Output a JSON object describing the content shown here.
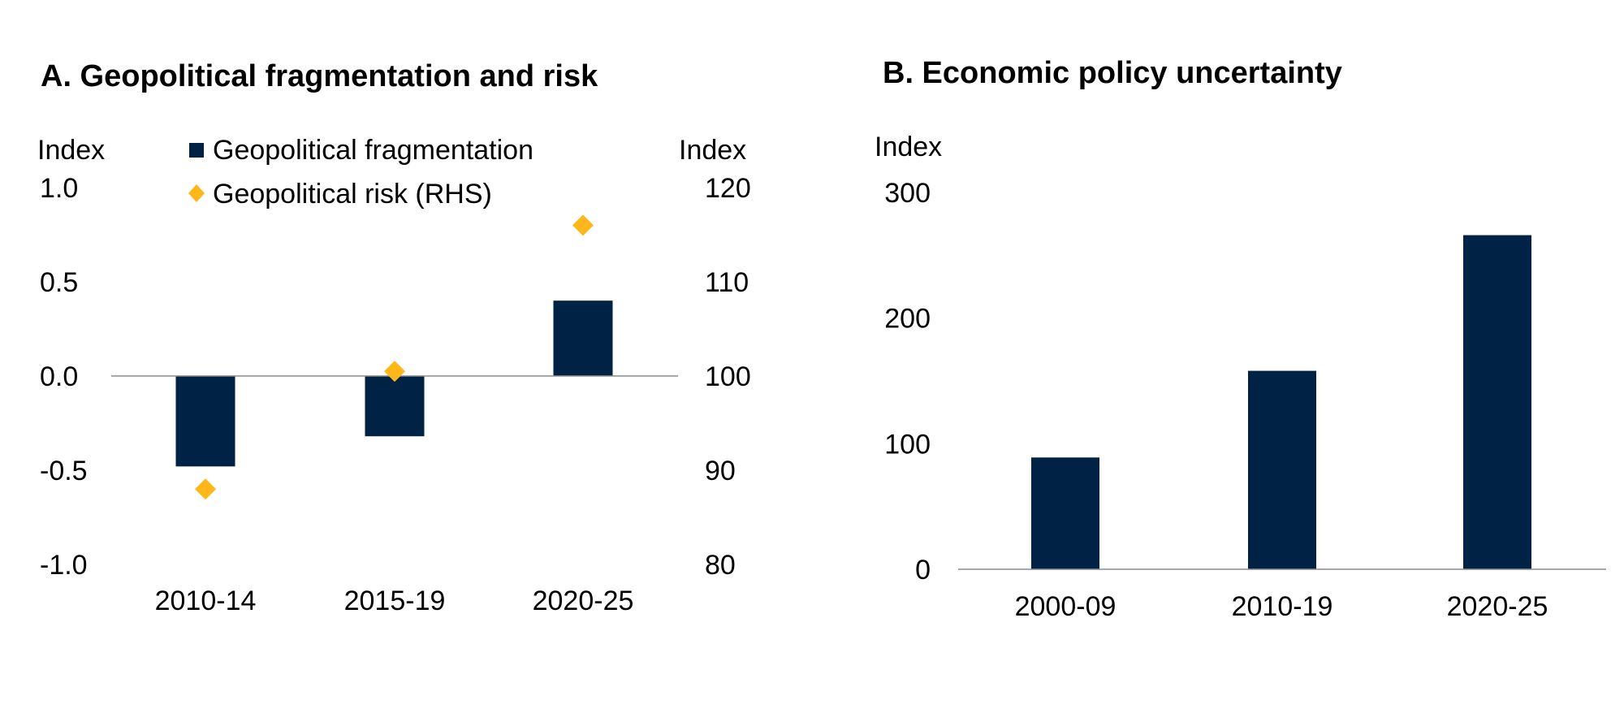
{
  "colors": {
    "bar": "#002244",
    "marker": "#FDB71A",
    "axis": "#8c8c8c"
  },
  "chart_data": [
    {
      "type": "bar",
      "title": "A. Geopolitical fragmentation and risk",
      "categories": [
        "2010-14",
        "2015-19",
        "2020-25"
      ],
      "ylabel": "Index",
      "ylabel_right": "Index",
      "ylim": [
        -1.0,
        1.0
      ],
      "ylim_right": [
        80,
        120
      ],
      "yticks": [
        1.0,
        0.5,
        0.0,
        -0.5,
        -1.0
      ],
      "ytick_labels": [
        "1.0",
        "0.5",
        "0.0",
        "-0.5",
        "-1.0"
      ],
      "yticks_right": [
        120,
        110,
        100,
        90,
        80
      ],
      "ytick_labels_right": [
        "120",
        "110",
        "100",
        "90",
        "80"
      ],
      "legend_position": "top-center",
      "series": [
        {
          "name": "Geopolitical fragmentation",
          "kind": "bar",
          "axis": "left",
          "values": [
            -0.48,
            -0.32,
            0.4
          ]
        },
        {
          "name": "Geopolitical risk (RHS)",
          "kind": "marker",
          "axis": "right",
          "values": [
            88,
            100.5,
            116
          ]
        }
      ]
    },
    {
      "type": "bar",
      "title": "B. Economic policy uncertainty",
      "categories": [
        "2000-09",
        "2010-19",
        "2020-25"
      ],
      "ylabel": "Index",
      "ylim": [
        0,
        300
      ],
      "yticks": [
        300,
        200,
        100,
        0
      ],
      "ytick_labels": [
        "300",
        "200",
        "100",
        "0"
      ],
      "series": [
        {
          "name": "Economic policy uncertainty",
          "kind": "bar",
          "values": [
            89,
            158,
            266
          ]
        }
      ]
    }
  ]
}
